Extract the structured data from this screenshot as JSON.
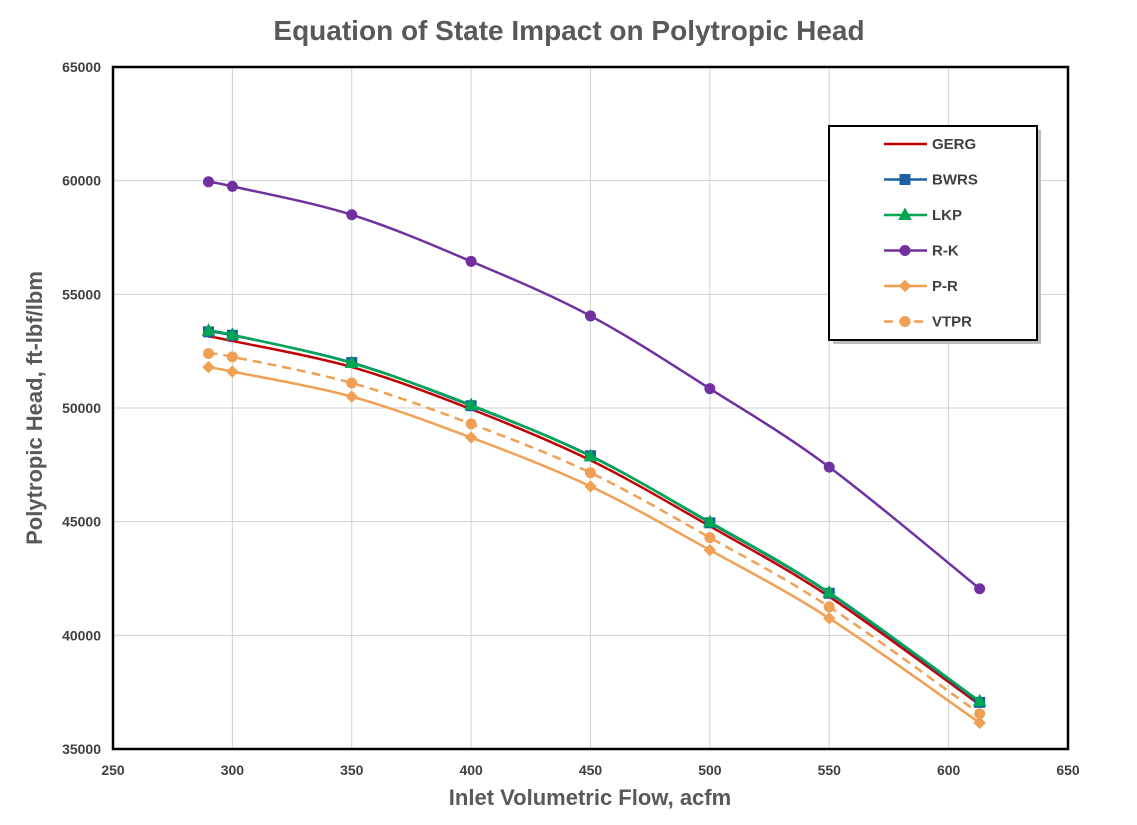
{
  "chart_data": {
    "type": "line",
    "title": "Equation of State Impact on Polytropic Head",
    "xlabel": "Inlet Volumetric Flow, acfm",
    "ylabel": "Polytropic Head, ft-lbf/lbm",
    "xlim": [
      250,
      650
    ],
    "ylim": [
      35000,
      65000
    ],
    "x_ticks": [
      250,
      300,
      350,
      400,
      450,
      500,
      550,
      600,
      650
    ],
    "y_ticks": [
      35000,
      40000,
      45000,
      50000,
      55000,
      60000,
      65000
    ],
    "grid": true,
    "legend_position": "top-right",
    "x": [
      290,
      300,
      350,
      400,
      450,
      500,
      550,
      613
    ],
    "series": [
      {
        "name": "GERG",
        "color": "#c00000",
        "marker": "none",
        "dash": false,
        "values": [
          53150,
          52950,
          51800,
          49950,
          47700,
          44800,
          41700,
          36950
        ]
      },
      {
        "name": "BWRS",
        "color": "#1f5fa5",
        "marker": "square",
        "dash": false,
        "values": [
          53350,
          53200,
          52000,
          50100,
          47900,
          44950,
          41850,
          37050
        ]
      },
      {
        "name": "LKP",
        "color": "#00a651",
        "marker": "triangle",
        "dash": false,
        "values": [
          53400,
          53220,
          51980,
          50130,
          47880,
          44980,
          41880,
          37100
        ]
      },
      {
        "name": "R-K",
        "color": "#7030a0",
        "marker": "circle",
        "dash": false,
        "values": [
          59950,
          59750,
          58500,
          56450,
          54050,
          50850,
          47400,
          42050
        ]
      },
      {
        "name": "P-R",
        "color": "#f0a054",
        "marker": "diamond",
        "dash": false,
        "values": [
          51800,
          51600,
          50500,
          48700,
          46550,
          43750,
          40750,
          36150
        ]
      },
      {
        "name": "VTPR",
        "color": "#f0a054",
        "marker": "circle",
        "dash": true,
        "values": [
          52400,
          52250,
          51100,
          49300,
          47150,
          44300,
          41250,
          36550
        ]
      }
    ]
  }
}
